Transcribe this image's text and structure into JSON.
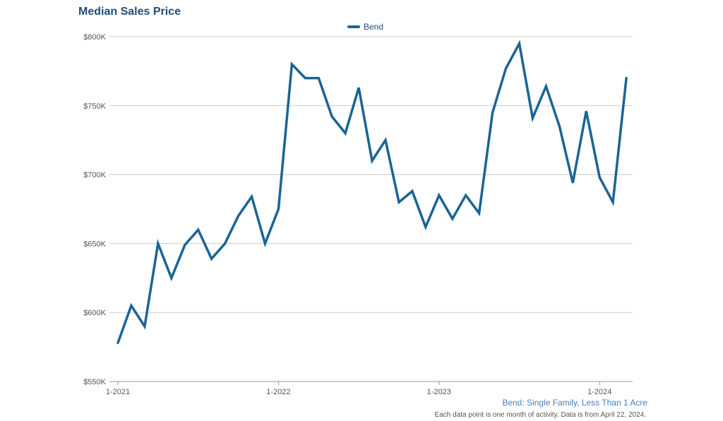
{
  "colors": {
    "series": "#1a6496",
    "title": "#1f4e79",
    "grid": "#cccccc",
    "note": "#4a7fb5"
  },
  "chart_data": {
    "type": "line",
    "title": "Median Sales Price",
    "legend_position": "top-center",
    "grid": true,
    "ylim": [
      550000,
      800000
    ],
    "y_ticks": [
      {
        "value": 550000,
        "label": "$550K"
      },
      {
        "value": 600000,
        "label": "$600K"
      },
      {
        "value": 650000,
        "label": "$650K"
      },
      {
        "value": 700000,
        "label": "$700K"
      },
      {
        "value": 750000,
        "label": "$750K"
      },
      {
        "value": 800000,
        "label": "$800K"
      }
    ],
    "x_ticks": [
      {
        "index": 0,
        "label": "1-2021"
      },
      {
        "index": 12,
        "label": "1-2022"
      },
      {
        "index": 24,
        "label": "1-2023"
      },
      {
        "index": 36,
        "label": "1-2024"
      }
    ],
    "x": [
      "1-2021",
      "2-2021",
      "3-2021",
      "4-2021",
      "5-2021",
      "6-2021",
      "7-2021",
      "8-2021",
      "9-2021",
      "10-2021",
      "11-2021",
      "12-2021",
      "1-2022",
      "2-2022",
      "3-2022",
      "4-2022",
      "5-2022",
      "6-2022",
      "7-2022",
      "8-2022",
      "9-2022",
      "10-2022",
      "11-2022",
      "12-2022",
      "1-2023",
      "2-2023",
      "3-2023",
      "4-2023",
      "5-2023",
      "6-2023",
      "7-2023",
      "8-2023",
      "9-2023",
      "10-2023",
      "11-2023",
      "12-2023",
      "1-2024",
      "2-2024",
      "3-2024"
    ],
    "series": [
      {
        "name": "Bend",
        "values": [
          578000,
          605000,
          590000,
          650000,
          625000,
          649000,
          660000,
          639000,
          650000,
          670000,
          684000,
          650000,
          675000,
          780000,
          770000,
          770000,
          742000,
          730000,
          763000,
          710000,
          725000,
          680000,
          688000,
          662000,
          685000,
          668000,
          685000,
          672000,
          745000,
          777000,
          795000,
          741000,
          764000,
          735000,
          694000,
          746000,
          698000,
          680000,
          770000
        ]
      }
    ]
  },
  "notes": {
    "subtitle": "Bend: Single Family, Less Than 1 Acre",
    "footnote": "Each data point is one month of activity. Data is from April 22, 2024."
  }
}
